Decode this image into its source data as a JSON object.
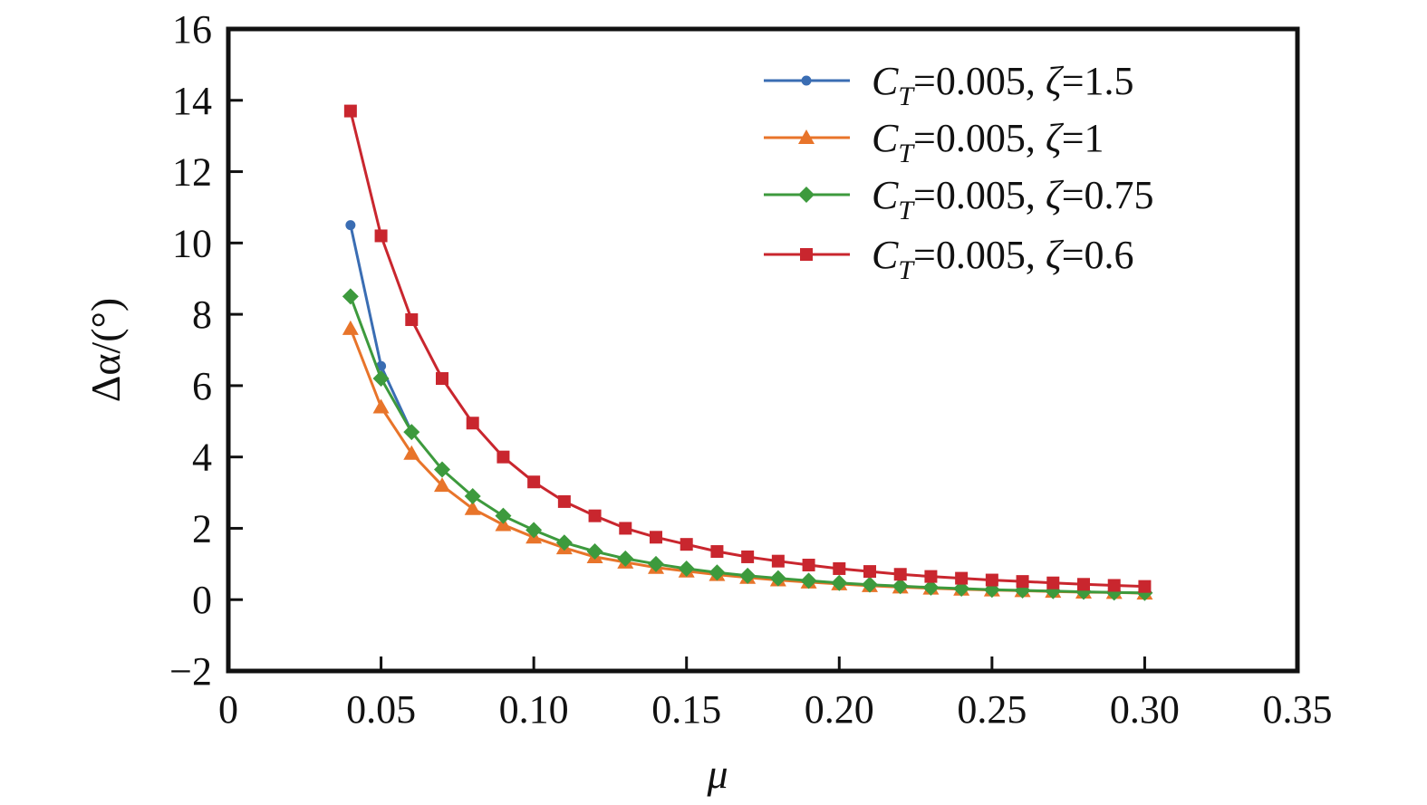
{
  "chart_data": {
    "type": "line",
    "xlabel": "μ",
    "ylabel": "Δα/(°)",
    "xlim": [
      0,
      0.35
    ],
    "ylim": [
      -2,
      16
    ],
    "xticks": [
      0,
      0.05,
      0.1,
      0.15,
      0.2,
      0.25,
      0.3,
      0.35
    ],
    "xtick_labels": [
      "0",
      "0.05",
      "0.10",
      "0.15",
      "0.20",
      "0.25",
      "0.30",
      "0.35"
    ],
    "yticks": [
      -2,
      0,
      2,
      4,
      6,
      8,
      10,
      12,
      14,
      16
    ],
    "ytick_labels": [
      "−2",
      "0",
      "2",
      "4",
      "6",
      "8",
      "10",
      "12",
      "14",
      "16"
    ],
    "grid": false,
    "legend_position": "top-right",
    "series": [
      {
        "name": "C_T=0.005, ζ=1.5",
        "legend_parts": {
          "c": "C",
          "sub": "T",
          "rest": "=0.005, ",
          "zeta": "ζ",
          "value": "=1.5"
        },
        "color": "#3a6db3",
        "marker": "circle",
        "x": [
          0.04,
          0.05,
          0.06
        ],
        "y": [
          10.5,
          6.55,
          4.7
        ]
      },
      {
        "name": "C_T=0.005, ζ=1",
        "legend_parts": {
          "c": "C",
          "sub": "T",
          "rest": "=0.005, ",
          "zeta": "ζ",
          "value": "=1"
        },
        "color": "#e8742a",
        "marker": "triangle",
        "x": [
          0.04,
          0.05,
          0.06,
          0.07,
          0.08,
          0.09,
          0.1,
          0.11,
          0.12,
          0.13,
          0.14,
          0.15,
          0.16,
          0.17,
          0.18,
          0.19,
          0.2,
          0.21,
          0.22,
          0.23,
          0.24,
          0.25,
          0.26,
          0.27,
          0.28,
          0.29,
          0.3
        ],
        "y": [
          7.6,
          5.4,
          4.1,
          3.2,
          2.55,
          2.1,
          1.75,
          1.45,
          1.2,
          1.05,
          0.9,
          0.8,
          0.7,
          0.62,
          0.55,
          0.49,
          0.44,
          0.39,
          0.35,
          0.32,
          0.29,
          0.27,
          0.25,
          0.23,
          0.21,
          0.2,
          0.18
        ]
      },
      {
        "name": "C_T=0.005, ζ=0.75",
        "legend_parts": {
          "c": "C",
          "sub": "T",
          "rest": "=0.005, ",
          "zeta": "ζ",
          "value": "=0.75"
        },
        "color": "#3d9a3d",
        "marker": "diamond",
        "x": [
          0.04,
          0.05,
          0.06,
          0.07,
          0.08,
          0.09,
          0.1,
          0.11,
          0.12,
          0.13,
          0.14,
          0.15,
          0.16,
          0.17,
          0.18,
          0.19,
          0.2,
          0.21,
          0.22,
          0.23,
          0.24,
          0.25,
          0.26,
          0.27,
          0.28,
          0.29,
          0.3
        ],
        "y": [
          8.5,
          6.2,
          4.7,
          3.65,
          2.9,
          2.35,
          1.95,
          1.6,
          1.35,
          1.15,
          1.0,
          0.87,
          0.76,
          0.67,
          0.6,
          0.53,
          0.47,
          0.42,
          0.38,
          0.34,
          0.31,
          0.28,
          0.26,
          0.24,
          0.22,
          0.2,
          0.19
        ]
      },
      {
        "name": "C_T=0.005, ζ=0.6",
        "legend_parts": {
          "c": "C",
          "sub": "T",
          "rest": "=0.005, ",
          "zeta": "ζ",
          "value": "=0.6"
        },
        "color": "#c9262e",
        "marker": "square",
        "x": [
          0.04,
          0.05,
          0.06,
          0.07,
          0.08,
          0.09,
          0.1,
          0.11,
          0.12,
          0.13,
          0.14,
          0.15,
          0.16,
          0.17,
          0.18,
          0.19,
          0.2,
          0.21,
          0.22,
          0.23,
          0.24,
          0.25,
          0.26,
          0.27,
          0.28,
          0.29,
          0.3
        ],
        "y": [
          13.7,
          10.2,
          7.85,
          6.2,
          4.95,
          4.0,
          3.3,
          2.75,
          2.35,
          2.0,
          1.75,
          1.55,
          1.35,
          1.2,
          1.08,
          0.97,
          0.87,
          0.79,
          0.71,
          0.65,
          0.6,
          0.55,
          0.51,
          0.47,
          0.43,
          0.4,
          0.37
        ]
      }
    ]
  }
}
